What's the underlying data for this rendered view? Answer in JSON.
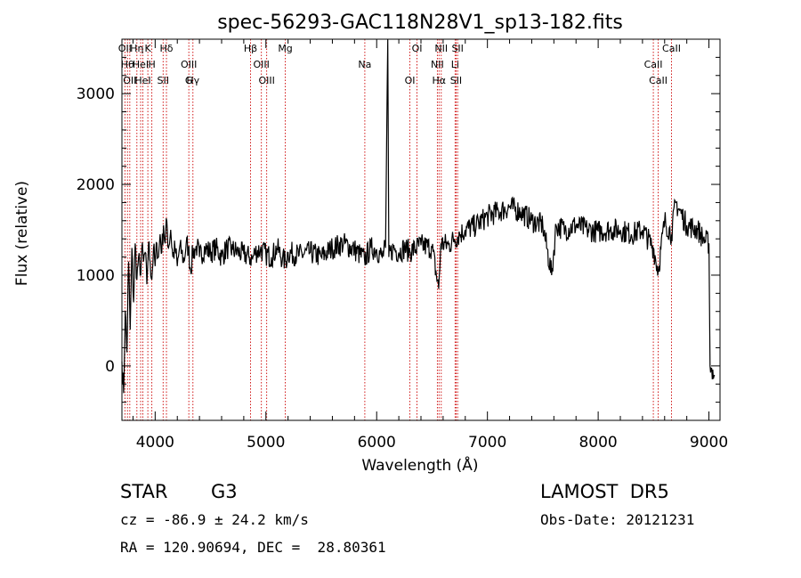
{
  "chart_data": {
    "type": "line",
    "title": "spec-56293-GAC118N28V1_sp13-182.fits",
    "xlabel": "Wavelength (Å)",
    "ylabel": "Flux (relative)",
    "xlim": [
      3700,
      9100
    ],
    "ylim": [
      -600,
      3600
    ],
    "xticks": [
      4000,
      5000,
      6000,
      7000,
      8000,
      9000
    ],
    "yticks": [
      0,
      1000,
      2000,
      3000
    ],
    "grid": false,
    "series": [
      {
        "points": [
          [
            3700,
            50
          ],
          [
            3715,
            -300
          ],
          [
            3730,
            600
          ],
          [
            3745,
            150
          ],
          [
            3760,
            1150
          ],
          [
            3775,
            400
          ],
          [
            3790,
            1300
          ],
          [
            3805,
            700
          ],
          [
            3820,
            1350
          ],
          [
            3835,
            950
          ],
          [
            3850,
            1200
          ],
          [
            3865,
            1000
          ],
          [
            3880,
            1300
          ],
          [
            3895,
            1150
          ],
          [
            3910,
            1250
          ],
          [
            3925,
            900
          ],
          [
            3940,
            1350
          ],
          [
            3955,
            1150
          ],
          [
            3970,
            950
          ],
          [
            3985,
            1300
          ],
          [
            4000,
            1100
          ],
          [
            4015,
            1350
          ],
          [
            4030,
            1200
          ],
          [
            4045,
            1450
          ],
          [
            4060,
            1250
          ],
          [
            4075,
            1550
          ],
          [
            4090,
            1350
          ],
          [
            4105,
            1600
          ],
          [
            4120,
            1300
          ],
          [
            4140,
            1500
          ],
          [
            4160,
            1200
          ],
          [
            4180,
            1300
          ],
          [
            4200,
            1100
          ],
          [
            4220,
            1300
          ],
          [
            4240,
            1250
          ],
          [
            4260,
            1150
          ],
          [
            4280,
            1350
          ],
          [
            4300,
            1300
          ],
          [
            4320,
            1050
          ],
          [
            4340,
            1250
          ],
          [
            4360,
            1280
          ],
          [
            4380,
            1320
          ],
          [
            4400,
            1200
          ],
          [
            4450,
            1300
          ],
          [
            4500,
            1250
          ],
          [
            4550,
            1300
          ],
          [
            4600,
            1200
          ],
          [
            4650,
            1300
          ],
          [
            4700,
            1280
          ],
          [
            4750,
            1250
          ],
          [
            4800,
            1230
          ],
          [
            4850,
            1200
          ],
          [
            4880,
            1180
          ],
          [
            4900,
            1250
          ],
          [
            4950,
            1280
          ],
          [
            5000,
            1230
          ],
          [
            5050,
            1200
          ],
          [
            5100,
            1300
          ],
          [
            5150,
            1180
          ],
          [
            5180,
            1150
          ],
          [
            5200,
            1250
          ],
          [
            5300,
            1220
          ],
          [
            5400,
            1250
          ],
          [
            5500,
            1200
          ],
          [
            5600,
            1300
          ],
          [
            5700,
            1350
          ],
          [
            5800,
            1280
          ],
          [
            5890,
            1180
          ],
          [
            5950,
            1300
          ],
          [
            6000,
            1280
          ],
          [
            6050,
            1200
          ],
          [
            6080,
            1300
          ],
          [
            6100,
            3600
          ],
          [
            6110,
            1200
          ],
          [
            6150,
            1300
          ],
          [
            6200,
            1250
          ],
          [
            6250,
            1300
          ],
          [
            6300,
            1260
          ],
          [
            6400,
            1330
          ],
          [
            6500,
            1300
          ],
          [
            6560,
            850
          ],
          [
            6580,
            1350
          ],
          [
            6650,
            1330
          ],
          [
            6700,
            1400
          ],
          [
            6750,
            1450
          ],
          [
            6800,
            1500
          ],
          [
            6900,
            1550
          ],
          [
            7000,
            1650
          ],
          [
            7100,
            1700
          ],
          [
            7200,
            1750
          ],
          [
            7300,
            1700
          ],
          [
            7400,
            1600
          ],
          [
            7500,
            1550
          ],
          [
            7580,
            1000
          ],
          [
            7620,
            1550
          ],
          [
            7700,
            1500
          ],
          [
            7800,
            1550
          ],
          [
            7900,
            1500
          ],
          [
            8000,
            1480
          ],
          [
            8100,
            1500
          ],
          [
            8200,
            1500
          ],
          [
            8300,
            1450
          ],
          [
            8400,
            1500
          ],
          [
            8498,
            1300
          ],
          [
            8542,
            1050
          ],
          [
            8600,
            1600
          ],
          [
            8662,
            1450
          ],
          [
            8700,
            1800
          ],
          [
            8800,
            1550
          ],
          [
            8900,
            1500
          ],
          [
            8950,
            1400
          ],
          [
            9000,
            1350
          ],
          [
            9010,
            0
          ],
          [
            9050,
            -100
          ]
        ]
      }
    ],
    "lines": [
      {
        "x": 3727,
        "labels": [
          "OII"
        ]
      },
      {
        "x": 3750,
        "labels": [
          "Hθ"
        ]
      },
      {
        "x": 3771,
        "labels": [
          "OII"
        ]
      },
      {
        "x": 3835,
        "labels": [
          "Hη"
        ]
      },
      {
        "x": 3869,
        "labels": [
          "HeI"
        ]
      },
      {
        "x": 3889,
        "labels": [
          "HeI"
        ]
      },
      {
        "x": 3934,
        "labels": [
          "K"
        ]
      },
      {
        "x": 3970,
        "labels": [
          "H"
        ]
      },
      {
        "x": 4072,
        "labels": [
          "SII"
        ]
      },
      {
        "x": 4102,
        "labels": [
          "Hδ"
        ]
      },
      {
        "x": 4304,
        "labels": [
          "OIII",
          "G"
        ]
      },
      {
        "x": 4341,
        "labels": [
          "Hγ"
        ]
      },
      {
        "x": 4861,
        "labels": [
          "Hβ"
        ]
      },
      {
        "x": 4959,
        "labels": [
          "OIII"
        ]
      },
      {
        "x": 5007,
        "labels": [
          "OIII"
        ]
      },
      {
        "x": 5175,
        "labels": [
          "Mg"
        ]
      },
      {
        "x": 5893,
        "labels": [
          "Na"
        ]
      },
      {
        "x": 6300,
        "labels": [
          "OI"
        ]
      },
      {
        "x": 6364,
        "labels": [
          "OI"
        ]
      },
      {
        "x": 6548,
        "labels": [
          "NII"
        ]
      },
      {
        "x": 6563,
        "labels": [
          "Hα"
        ]
      },
      {
        "x": 6583,
        "labels": [
          "NII"
        ]
      },
      {
        "x": 6708,
        "labels": [
          "Li"
        ]
      },
      {
        "x": 6717,
        "labels": [
          "SII"
        ]
      },
      {
        "x": 6731,
        "labels": [
          "SII"
        ]
      },
      {
        "x": 8498,
        "labels": [
          "CaII"
        ]
      },
      {
        "x": 8542,
        "labels": [
          "CaII"
        ]
      },
      {
        "x": 8662,
        "labels": [
          "CaII"
        ]
      }
    ],
    "line_color": "#000000",
    "marker_color": "#cc0000"
  },
  "info": {
    "object_class": "STAR",
    "subclass": "G3",
    "survey": "LAMOST  DR5",
    "cz": "cz = -86.9 ± 24.2 km/s",
    "obs_date": "Obs-Date: 20121231",
    "coords": "RA = 120.90694, DEC =  28.80361"
  }
}
